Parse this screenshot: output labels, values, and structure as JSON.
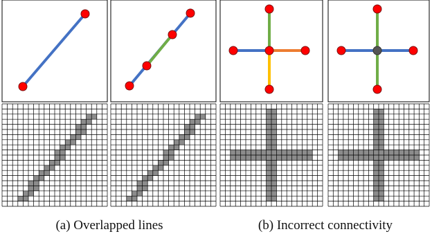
{
  "captions": {
    "a": "(a) Overlapped lines",
    "b": "(b) Incorrect connectivity"
  },
  "colors": {
    "blue": "#4472c4",
    "green": "#70ad47",
    "orange": "#ed7d31",
    "yellow": "#ffc000",
    "vertex": "#ff0000",
    "vertex_stroke": "#7a1010",
    "pixel_fill": "#8c8c8c",
    "grid": "#000000"
  },
  "grid": {
    "cols": 20,
    "rows": 20
  },
  "panels": [
    {
      "id": "a1",
      "pixels": "diagonal"
    },
    {
      "id": "a2",
      "pixels": "diagonal"
    },
    {
      "id": "b1",
      "pixels": "cross"
    },
    {
      "id": "b2",
      "pixels": "cross"
    }
  ]
}
